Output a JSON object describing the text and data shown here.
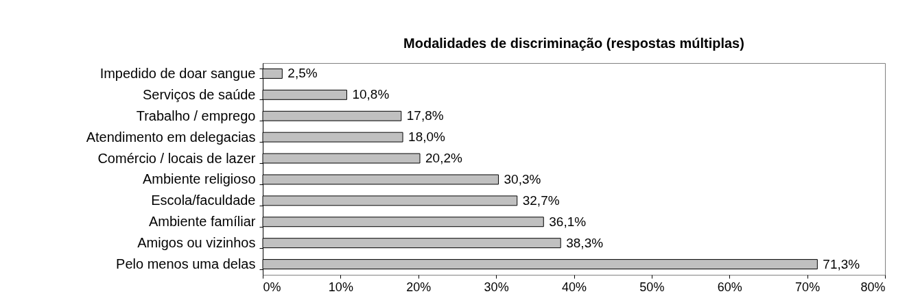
{
  "chart_data": {
    "type": "bar",
    "orientation": "horizontal",
    "title": "Modalidades de discriminação (respostas múltiplas)",
    "categories": [
      "Impedido de doar sangue",
      "Serviços de saúde",
      "Trabalho / emprego",
      "Atendimento em delegacias",
      "Comércio / locais de lazer",
      "Ambiente religioso",
      "Escola/faculdade",
      "Ambiente famíliar",
      "Amigos ou vizinhos",
      "Pelo menos uma delas"
    ],
    "values": [
      2.5,
      10.8,
      17.8,
      18.0,
      20.2,
      30.3,
      32.7,
      36.1,
      38.3,
      71.3
    ],
    "value_labels": [
      "2,5%",
      "10,8%",
      "17,8%",
      "18,0%",
      "20,2%",
      "30,3%",
      "32,7%",
      "36,1%",
      "38,3%",
      "71,3%"
    ],
    "color": "#c0c0c0",
    "xlim": [
      0,
      80
    ],
    "xticks": [
      {
        "value": 0,
        "label": "0%"
      },
      {
        "value": 10,
        "label": "10%"
      },
      {
        "value": 20,
        "label": "20%"
      },
      {
        "value": 30,
        "label": "30%"
      },
      {
        "value": 40,
        "label": "40%"
      },
      {
        "value": 50,
        "label": "50%"
      },
      {
        "value": 60,
        "label": "60%"
      },
      {
        "value": 70,
        "label": "70%"
      },
      {
        "value": 80,
        "label": "80%"
      }
    ],
    "grid": false
  }
}
